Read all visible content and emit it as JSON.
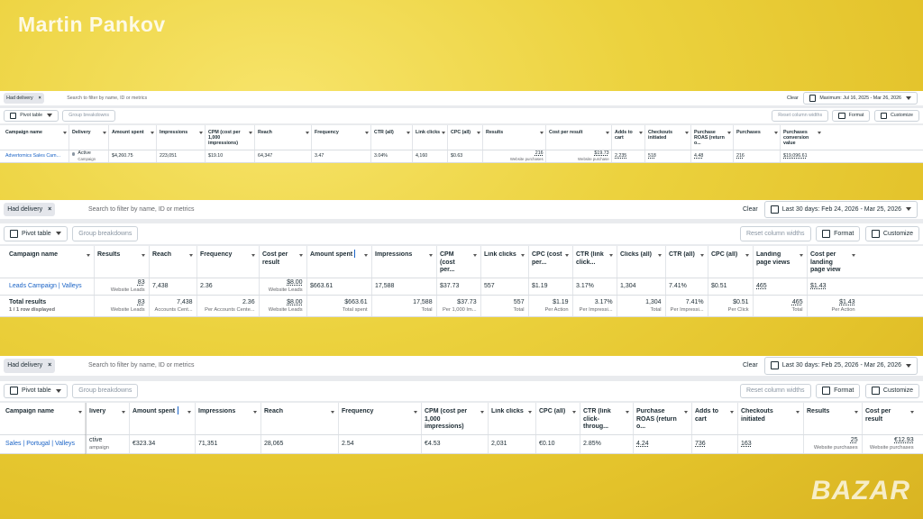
{
  "watermark": {
    "author": "Martin Pankov",
    "logo": "BAZAR"
  },
  "panels": [
    {
      "filter": {
        "chip": "Had delivery",
        "search": "Search to filter by name, ID or metrics",
        "clear": "Clear",
        "date": "Maximum: Jul 16, 2025 - Mar 26, 2026"
      },
      "toolbar": {
        "pivot": "Pivot table",
        "group": "Group breakdowns",
        "reset": "Reset column widths",
        "format": "Format",
        "customize": "Customize"
      },
      "columns": [
        "Campaign name",
        "Delivery",
        "Amount spent",
        "Impressions",
        "CPM (cost per 1,000 impressions)",
        "Reach",
        "Frequency",
        "CTR (all)",
        "Link clicks",
        "CPC (all)",
        "Results",
        "Cost per result",
        "Adds to cart",
        "Checkouts initiated",
        "Purchase ROAS (return o...",
        "Purchases",
        "Purchases conversion value"
      ],
      "rows": [
        [
          [
            "Advertomics Sales Cam..."
          ],
          [
            "Active",
            "Campaign"
          ],
          [
            "$4,260.75"
          ],
          [
            "223,051"
          ],
          [
            "$19.10"
          ],
          [
            "64,347"
          ],
          [
            "3.47"
          ],
          [
            "3.04%"
          ],
          [
            "4,160"
          ],
          [
            "$0.63"
          ],
          [
            "216",
            "Website purchases"
          ],
          [
            "$19.73",
            "Website purchase"
          ],
          [
            "2,235"
          ],
          [
            "518"
          ],
          [
            "4.48"
          ],
          [
            "216"
          ],
          [
            "$19,096.61"
          ]
        ]
      ]
    },
    {
      "filter": {
        "chip": "Had delivery",
        "search": "Search to filter by name, ID or metrics",
        "clear": "Clear",
        "date": "Last 30 days: Feb 24, 2026 - Mar 25, 2026"
      },
      "toolbar": {
        "pivot": "Pivot table",
        "group": "Group breakdowns",
        "reset": "Reset column widths",
        "format": "Format",
        "customize": "Customize"
      },
      "columns": [
        "Campaign name",
        "Results",
        "Reach",
        "Frequency",
        "Cost per result",
        "Amount spent",
        "Impressions",
        "CPM (cost per...",
        "Link clicks",
        "CPC (cost per...",
        "CTR (link click...",
        "Clicks (all)",
        "CTR (all)",
        "CPC (all)",
        "Landing page views",
        "Cost per landing page view"
      ],
      "rows": [
        [
          [
            "Leads Campaign | Valleys"
          ],
          [
            "83",
            "Website Leads"
          ],
          [
            "7,438"
          ],
          [
            "2.36"
          ],
          [
            "$8.00",
            "Website Leads"
          ],
          [
            "$663.61"
          ],
          [
            "17,588"
          ],
          [
            "$37.73"
          ],
          [
            "557"
          ],
          [
            "$1.19"
          ],
          [
            "3.17%"
          ],
          [
            "1,304"
          ],
          [
            "7.41%"
          ],
          [
            "$0.51"
          ],
          [
            "465"
          ],
          [
            "$1.43"
          ]
        ],
        [
          [
            "Total results",
            "1 / 1 row displayed"
          ],
          [
            "83",
            "Website Leads"
          ],
          [
            "7,438",
            "Accounts Cent..."
          ],
          [
            "2.36",
            "Per Accounts Cente..."
          ],
          [
            "$8.00",
            "Website Leads"
          ],
          [
            "$663.61",
            "Total spent"
          ],
          [
            "17,588",
            "Total"
          ],
          [
            "$37.73",
            "Per 1,000 Im..."
          ],
          [
            "557",
            "Total"
          ],
          [
            "$1.19",
            "Per Action"
          ],
          [
            "3.17%",
            "Per Impressi..."
          ],
          [
            "1,304",
            "Total"
          ],
          [
            "7.41%",
            "Per Impressi..."
          ],
          [
            "$0.51",
            "Per Click"
          ],
          [
            "465",
            "Total"
          ],
          [
            "$1.43",
            "Per Action"
          ]
        ]
      ]
    },
    {
      "filter": {
        "chip": "Had delivery",
        "search": "Search to filter by name, ID or metrics",
        "clear": "Clear",
        "date": "Last 30 days: Feb 25, 2026 - Mar 26, 2026"
      },
      "toolbar": {
        "pivot": "Pivot table",
        "group": "Group breakdowns",
        "reset": "Reset column widths",
        "format": "Format",
        "customize": "Customize"
      },
      "columns": [
        "Campaign name",
        "livery",
        "Amount spent",
        "Impressions",
        "Reach",
        "Frequency",
        "CPM (cost per 1,000 impressions)",
        "Link clicks",
        "CPC (all)",
        "CTR (link click-throug...",
        "Purchase ROAS (return o...",
        "Adds to cart",
        "Checkouts initiated",
        "Results",
        "Cost per result"
      ],
      "rows": [
        [
          [
            "Sales | Portugal | Valleys"
          ],
          [
            "ctive",
            "ampaign"
          ],
          [
            "€323.34"
          ],
          [
            "71,351"
          ],
          [
            "28,065"
          ],
          [
            "2.54"
          ],
          [
            "€4.53"
          ],
          [
            "2,031"
          ],
          [
            "€0.10"
          ],
          [
            "2.85%"
          ],
          [
            "4.24"
          ],
          [
            "736"
          ],
          [
            "163"
          ],
          [
            "25",
            "Website purchases"
          ],
          [
            "€12.93",
            "Website purchases"
          ]
        ]
      ]
    }
  ]
}
